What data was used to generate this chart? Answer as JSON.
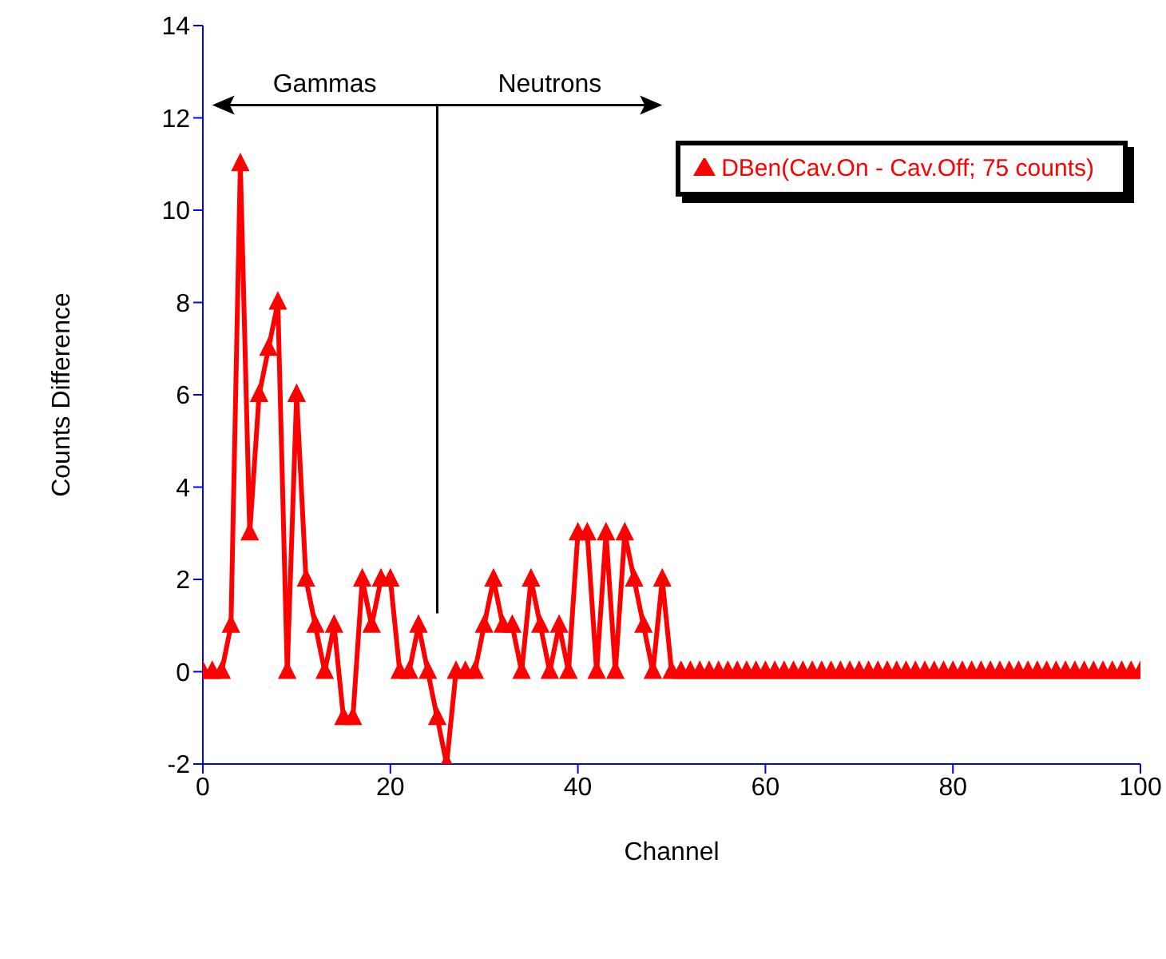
{
  "chart_data": {
    "type": "line",
    "xlabel": "Channel",
    "ylabel": "Counts Difference",
    "x": [
      0,
      1,
      2,
      3,
      4,
      5,
      6,
      7,
      8,
      9,
      10,
      11,
      12,
      13,
      14,
      15,
      16,
      17,
      18,
      19,
      20,
      21,
      22,
      23,
      24,
      25,
      26,
      27,
      28,
      29,
      30,
      31,
      32,
      33,
      34,
      35,
      36,
      37,
      38,
      39,
      40,
      41,
      42,
      43,
      44,
      45,
      46,
      47,
      48,
      49,
      50,
      51,
      52,
      53,
      54,
      55,
      56,
      57,
      58,
      59,
      60,
      61,
      62,
      63,
      64,
      65,
      66,
      67,
      68,
      69,
      70,
      71,
      72,
      73,
      74,
      75,
      76,
      77,
      78,
      79,
      80,
      81,
      82,
      83,
      84,
      85,
      86,
      87,
      88,
      89,
      90,
      91,
      92,
      93,
      94,
      95,
      96,
      97,
      98,
      99,
      100
    ],
    "series": [
      {
        "name": "DBen(Cav.On - Cav.Off; 75 counts)",
        "color": "#ff0000",
        "values": [
          0,
          0,
          0,
          1,
          11,
          3,
          6,
          7,
          8,
          0,
          6,
          2,
          1,
          0,
          1,
          -1,
          -1,
          2,
          1,
          2,
          2,
          0,
          0,
          1,
          0,
          -1,
          -2,
          0,
          0,
          0,
          1,
          2,
          1,
          1,
          0,
          2,
          1,
          0,
          1,
          0,
          3,
          3,
          0,
          3,
          0,
          3,
          2,
          1,
          0,
          2,
          0,
          0,
          0,
          0,
          0,
          0,
          0,
          0,
          0,
          0,
          0,
          0,
          0,
          0,
          0,
          0,
          0,
          0,
          0,
          0,
          0,
          0,
          0,
          0,
          0,
          0,
          0,
          0,
          0,
          0,
          0,
          0,
          0,
          0,
          0,
          0,
          0,
          0,
          0,
          0,
          0,
          0,
          0,
          0,
          0,
          0,
          0,
          0,
          0,
          0,
          0
        ]
      }
    ],
    "xlim": [
      0,
      100
    ],
    "xticks": [
      0,
      20,
      40,
      60,
      80,
      100
    ],
    "ylim": [
      -2,
      14
    ],
    "yticks": [
      -2,
      0,
      2,
      4,
      6,
      8,
      10,
      12,
      14
    ],
    "annotations": [
      "Gammas",
      "Neutrons"
    ],
    "ref_lines": [
      {
        "axis": "x",
        "value": 25,
        "color": "#000000"
      }
    ],
    "grid": false,
    "legend": "top right",
    "marker": "triangle",
    "line_style": "solid"
  }
}
